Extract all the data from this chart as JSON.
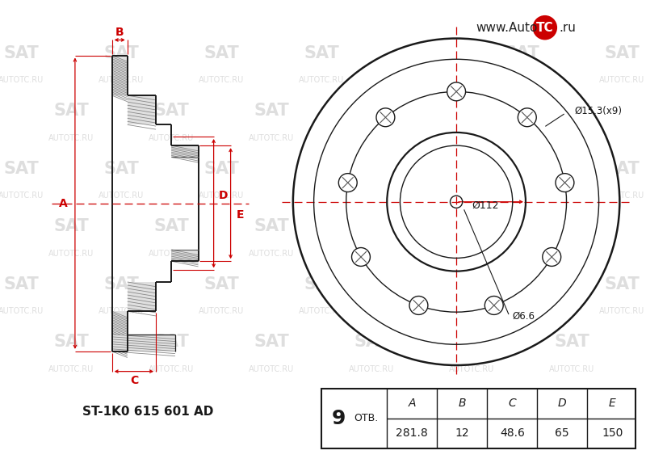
{
  "bg_color": "#ffffff",
  "line_color": "#1a1a1a",
  "red_color": "#cc0000",
  "part_number": "ST-1K0 615 601 AD",
  "holes": 9,
  "label_otv": "ОТВ.",
  "dim_A": "281.8",
  "dim_B": "12",
  "dim_C": "48.6",
  "dim_D": "65",
  "dim_E": "150",
  "label_A": "A",
  "label_B": "B",
  "label_C": "C",
  "label_D": "D",
  "label_E": "E",
  "annotation_d153": "Ø15.3(x9)",
  "annotation_d112": "Ø112",
  "annotation_d66": "Ø6.6",
  "wm_color": "#d0d0d0",
  "wm_sat": "SAT",
  "wm_url": "AUTOTC.RU",
  "logo_text1": "www.Auto",
  "logo_text2": "TC",
  "logo_text3": ".ru"
}
